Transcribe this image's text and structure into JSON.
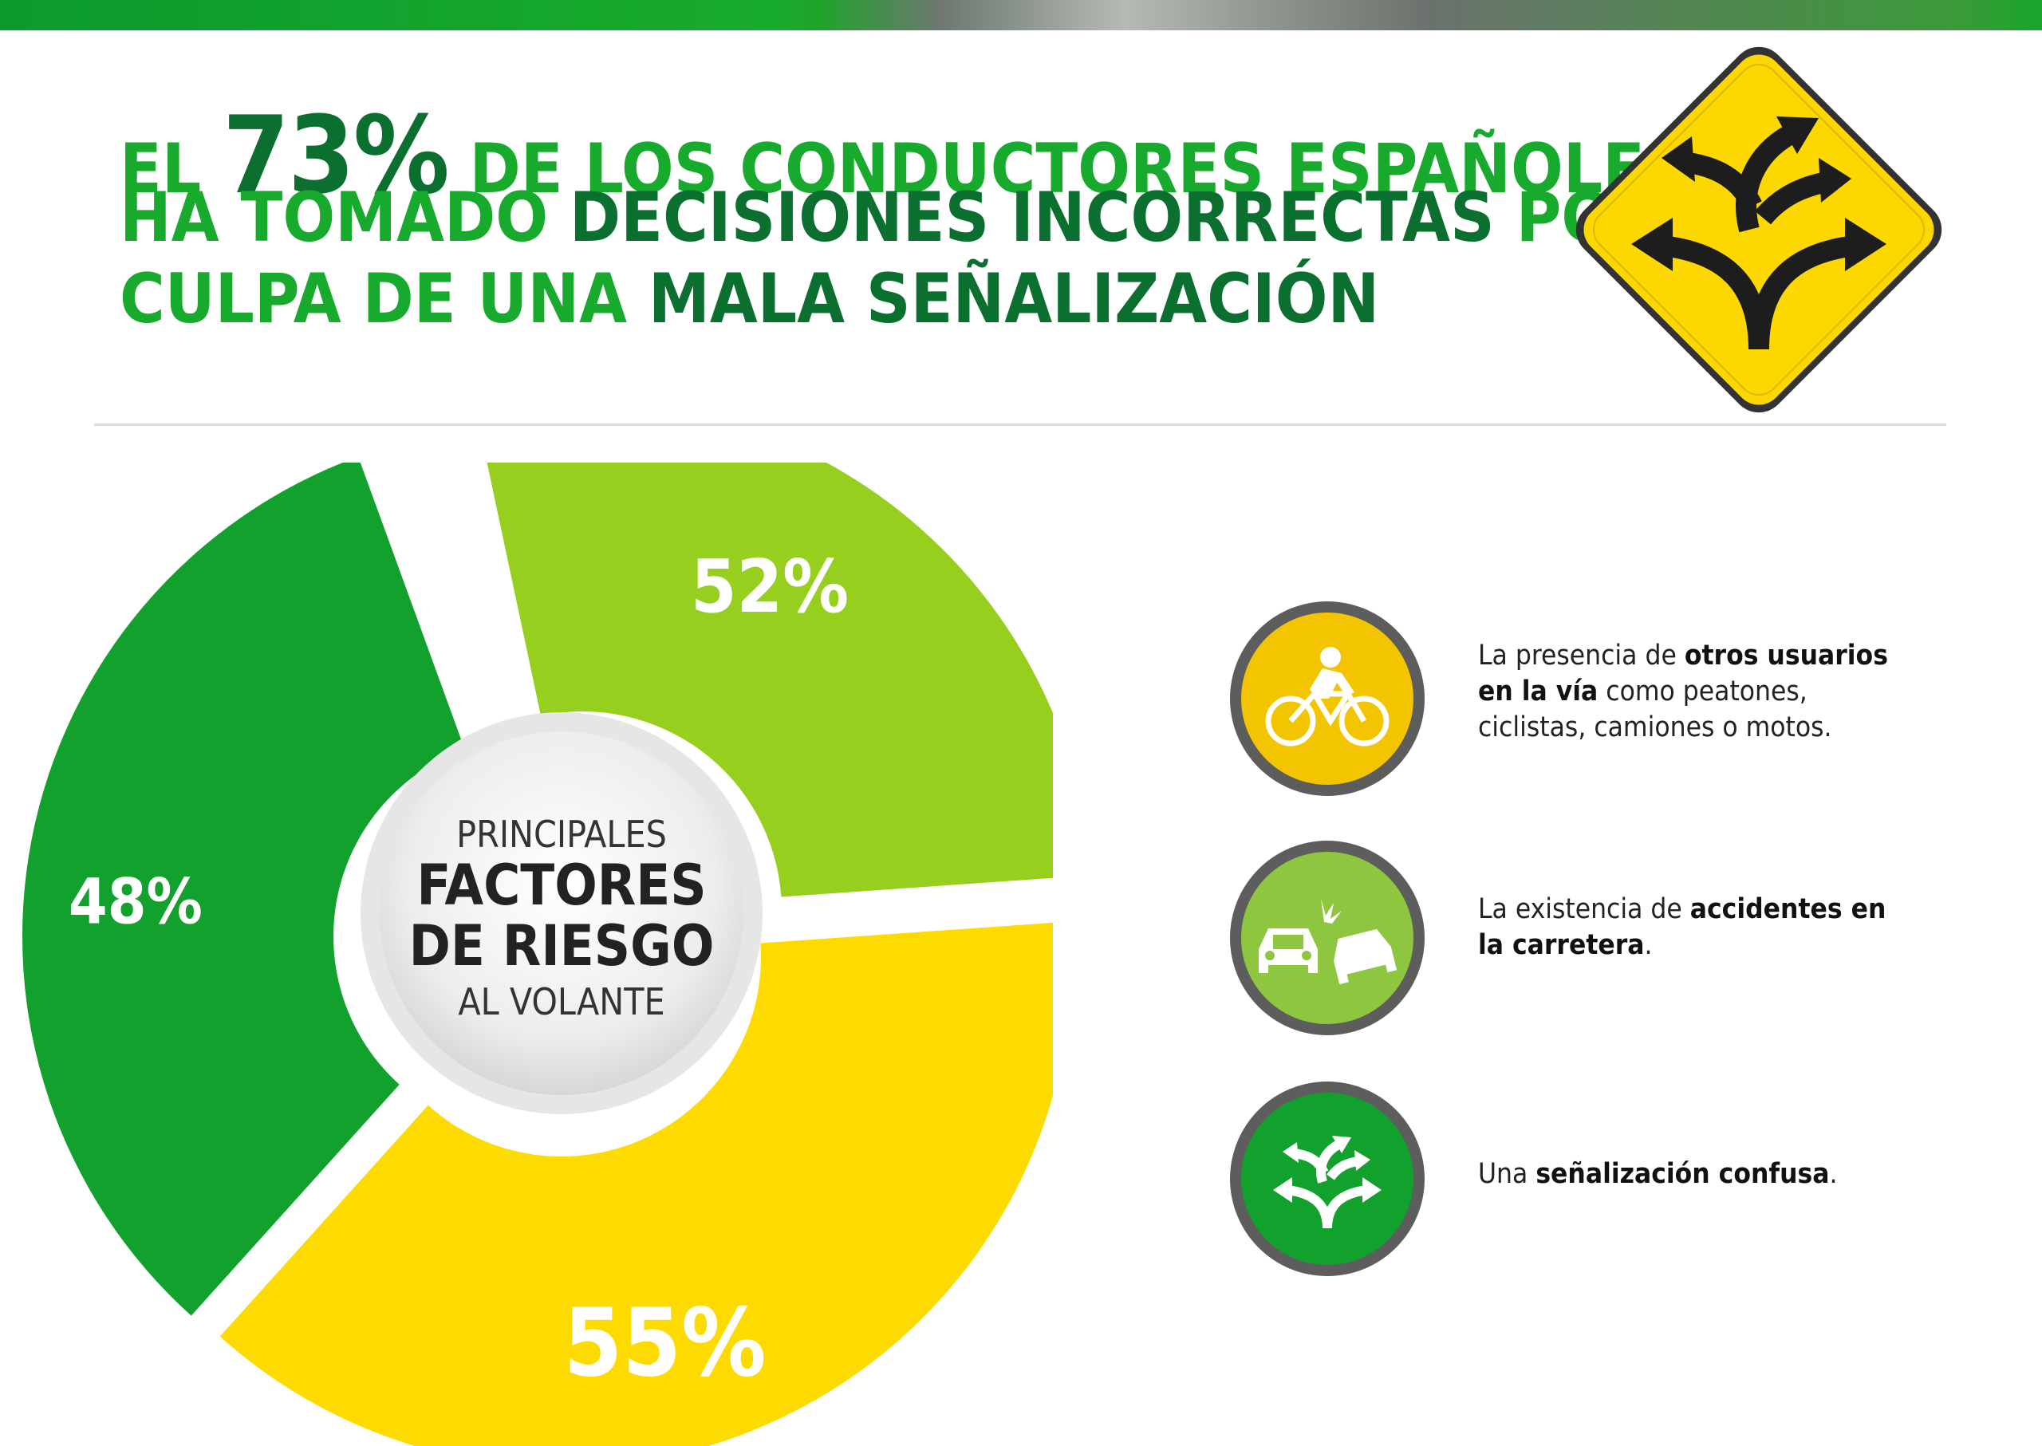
{
  "headline": {
    "line1_a": "EL ",
    "line1_big": "73%",
    "line1_b": " DE LOS CONDUCTORES ESPAÑOLES",
    "line2_a": "HA TOMADO ",
    "line2_b": "DECISIONES INCORRECTAS",
    "line2_c": " POR",
    "line3_a": "CULPA DE UNA ",
    "line3_b": "MALA SEÑALIZACIÓN"
  },
  "chart_data": {
    "type": "pie",
    "title": "",
    "slices": [
      {
        "label": "52%",
        "value": 52,
        "color": "#96cf1e"
      },
      {
        "label": "55%",
        "value": 55,
        "color": "#fedb00"
      },
      {
        "label": "48%",
        "value": 48,
        "color": "#12a12c"
      }
    ],
    "center": {
      "line1": "PRINCIPALES",
      "line2": "FACTORES",
      "line3": "DE RIESGO",
      "line4": "AL VOLANTE"
    }
  },
  "factors": [
    {
      "icon": "cyclist-icon",
      "color": "#f2c500",
      "text_parts": [
        {
          "t": "La presencia de ",
          "b": false
        },
        {
          "t": "otros usuarios",
          "b": true
        },
        {
          "t": "en la vía",
          "b": true
        },
        {
          "t": " como peatones,",
          "b": false
        },
        {
          "t": "ciclistas, camiones o motos.",
          "b": false
        }
      ]
    },
    {
      "icon": "car-crash-icon",
      "color": "#8ec63f",
      "text_parts": [
        {
          "t": "La existencia de ",
          "b": false
        },
        {
          "t": "accidentes en",
          "b": true
        },
        {
          "t": "la carretera",
          "b": true
        },
        {
          "t": ".",
          "b": false
        }
      ]
    },
    {
      "icon": "branching-arrows-icon",
      "color": "#12a12c",
      "text_parts": [
        {
          "t": "Una ",
          "b": false
        },
        {
          "t": "señalización confusa",
          "b": true
        },
        {
          "t": ".",
          "b": false
        }
      ]
    }
  ],
  "colors": {
    "light_green": "#18aa2c",
    "dark_green": "#0b6f2f",
    "sign_yellow": "#fdd800"
  }
}
